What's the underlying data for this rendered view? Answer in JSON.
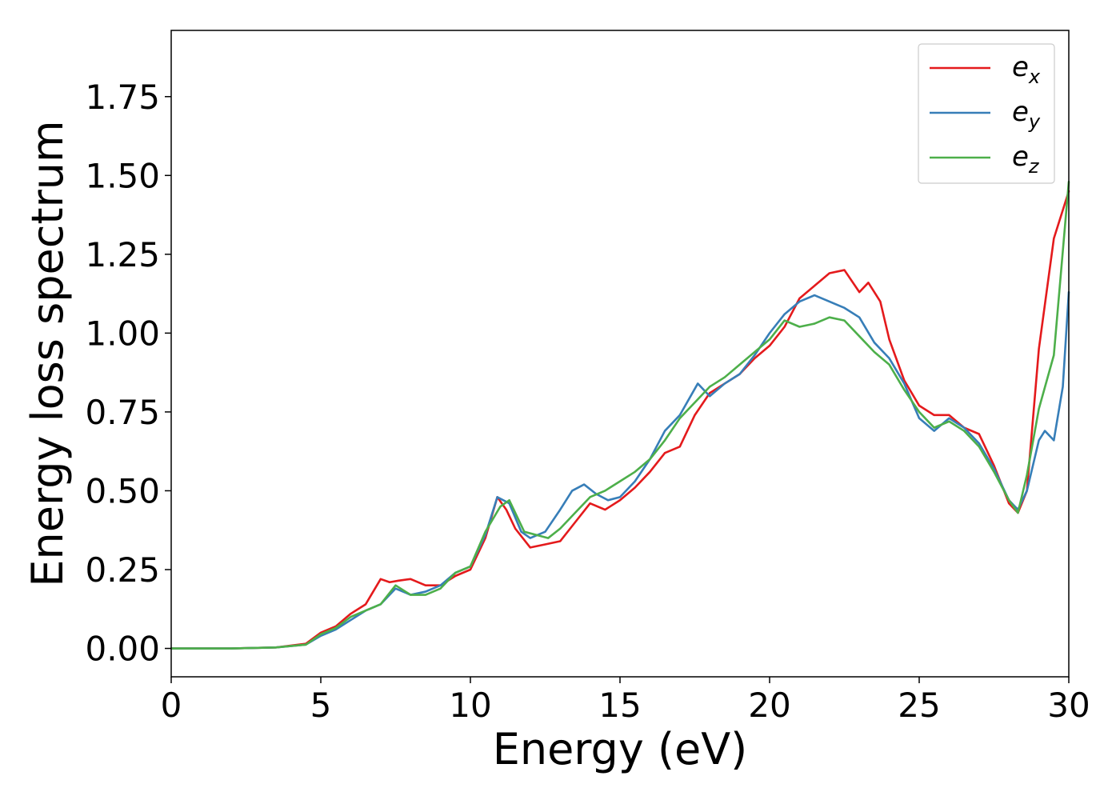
{
  "chart_data": {
    "type": "line",
    "title": "",
    "xlabel": "Energy (eV)",
    "ylabel": "Energy loss spectrum",
    "xlim": [
      0,
      30
    ],
    "ylim": [
      -0.09,
      1.96
    ],
    "xticks": [
      0,
      5,
      10,
      15,
      20,
      25,
      30
    ],
    "xtick_labels": [
      "0",
      "5",
      "10",
      "15",
      "20",
      "25",
      "30"
    ],
    "yticks": [
      0.0,
      0.25,
      0.5,
      0.75,
      1.0,
      1.25,
      1.5,
      1.75
    ],
    "ytick_labels": [
      "0.00",
      "0.25",
      "0.50",
      "0.75",
      "1.00",
      "1.25",
      "1.50",
      "1.75"
    ],
    "grid": false,
    "legend_position": "top-right",
    "series": [
      {
        "name": "e_x",
        "label_base": "e",
        "label_sub": "x",
        "color": "#e41a1c",
        "x": [
          0,
          2,
          3.5,
          4.5,
          5.0,
          5.5,
          6.0,
          6.5,
          7.0,
          7.3,
          7.6,
          8.0,
          8.5,
          9.0,
          9.5,
          10.0,
          10.5,
          10.9,
          11.2,
          11.5,
          12.0,
          12.5,
          13.0,
          13.5,
          14.0,
          14.5,
          15.0,
          15.5,
          16.0,
          16.5,
          17.0,
          17.5,
          18.0,
          18.5,
          19.0,
          19.5,
          20.0,
          20.5,
          21.0,
          21.5,
          22.0,
          22.5,
          23.0,
          23.3,
          23.7,
          24.0,
          24.5,
          25.0,
          25.5,
          26.0,
          26.5,
          27.0,
          27.5,
          28.0,
          28.3,
          28.6,
          29.0,
          29.5,
          30.0
        ],
        "y": [
          0.0,
          0.0,
          0.003,
          0.015,
          0.05,
          0.07,
          0.11,
          0.14,
          0.22,
          0.21,
          0.215,
          0.22,
          0.2,
          0.2,
          0.23,
          0.25,
          0.35,
          0.48,
          0.44,
          0.38,
          0.32,
          0.33,
          0.34,
          0.4,
          0.46,
          0.44,
          0.47,
          0.51,
          0.56,
          0.62,
          0.64,
          0.74,
          0.81,
          0.84,
          0.87,
          0.92,
          0.96,
          1.02,
          1.11,
          1.15,
          1.19,
          1.2,
          1.13,
          1.16,
          1.1,
          0.98,
          0.85,
          0.77,
          0.74,
          0.74,
          0.7,
          0.68,
          0.58,
          0.46,
          0.43,
          0.5,
          0.95,
          1.3,
          1.45
        ]
      },
      {
        "name": "e_y",
        "label_base": "e",
        "label_sub": "y",
        "color": "#377eb8",
        "x": [
          0,
          2,
          3.5,
          4.5,
          5.0,
          5.5,
          6.0,
          6.5,
          7.0,
          7.5,
          8.0,
          8.5,
          9.0,
          9.5,
          10.0,
          10.5,
          10.9,
          11.3,
          11.7,
          12.0,
          12.5,
          13.0,
          13.4,
          13.8,
          14.2,
          14.6,
          15.0,
          15.5,
          16.0,
          16.5,
          17.0,
          17.6,
          18.0,
          18.5,
          19.0,
          19.5,
          20.0,
          20.5,
          21.0,
          21.5,
          22.0,
          22.5,
          23.0,
          23.5,
          24.0,
          24.5,
          25.0,
          25.5,
          26.0,
          26.5,
          27.0,
          27.5,
          28.0,
          28.3,
          28.6,
          29.0,
          29.2,
          29.5,
          29.8,
          30.0
        ],
        "y": [
          0.0,
          0.0,
          0.003,
          0.012,
          0.04,
          0.06,
          0.09,
          0.12,
          0.14,
          0.19,
          0.17,
          0.18,
          0.2,
          0.24,
          0.26,
          0.36,
          0.48,
          0.46,
          0.37,
          0.35,
          0.37,
          0.44,
          0.5,
          0.52,
          0.49,
          0.47,
          0.48,
          0.53,
          0.6,
          0.69,
          0.74,
          0.84,
          0.8,
          0.84,
          0.87,
          0.93,
          1.0,
          1.06,
          1.1,
          1.12,
          1.1,
          1.08,
          1.05,
          0.97,
          0.92,
          0.84,
          0.73,
          0.69,
          0.73,
          0.7,
          0.65,
          0.57,
          0.47,
          0.44,
          0.5,
          0.66,
          0.69,
          0.66,
          0.83,
          1.13
        ]
      },
      {
        "name": "e_z",
        "label_base": "e",
        "label_sub": "z",
        "color": "#4daf4a",
        "x": [
          0,
          2,
          3.5,
          4.5,
          5.0,
          5.5,
          6.0,
          6.5,
          7.0,
          7.5,
          8.0,
          8.5,
          9.0,
          9.5,
          10.0,
          10.5,
          11.0,
          11.3,
          11.8,
          12.2,
          12.6,
          13.0,
          13.5,
          14.0,
          14.5,
          15.0,
          15.5,
          16.0,
          16.5,
          17.0,
          17.5,
          18.0,
          18.5,
          19.0,
          19.5,
          20.0,
          20.5,
          21.0,
          21.5,
          22.0,
          22.5,
          23.0,
          23.5,
          24.0,
          24.5,
          25.0,
          25.5,
          26.0,
          26.5,
          27.0,
          27.5,
          28.0,
          28.3,
          28.6,
          29.0,
          29.5,
          30.0
        ],
        "y": [
          0.0,
          0.0,
          0.003,
          0.012,
          0.045,
          0.065,
          0.1,
          0.12,
          0.14,
          0.2,
          0.17,
          0.17,
          0.19,
          0.24,
          0.26,
          0.37,
          0.45,
          0.47,
          0.37,
          0.36,
          0.35,
          0.38,
          0.43,
          0.48,
          0.5,
          0.53,
          0.56,
          0.6,
          0.66,
          0.73,
          0.78,
          0.83,
          0.86,
          0.9,
          0.94,
          0.98,
          1.04,
          1.02,
          1.03,
          1.05,
          1.04,
          0.99,
          0.94,
          0.9,
          0.82,
          0.75,
          0.7,
          0.72,
          0.69,
          0.64,
          0.56,
          0.47,
          0.43,
          0.55,
          0.76,
          0.93,
          1.48
        ]
      }
    ]
  }
}
